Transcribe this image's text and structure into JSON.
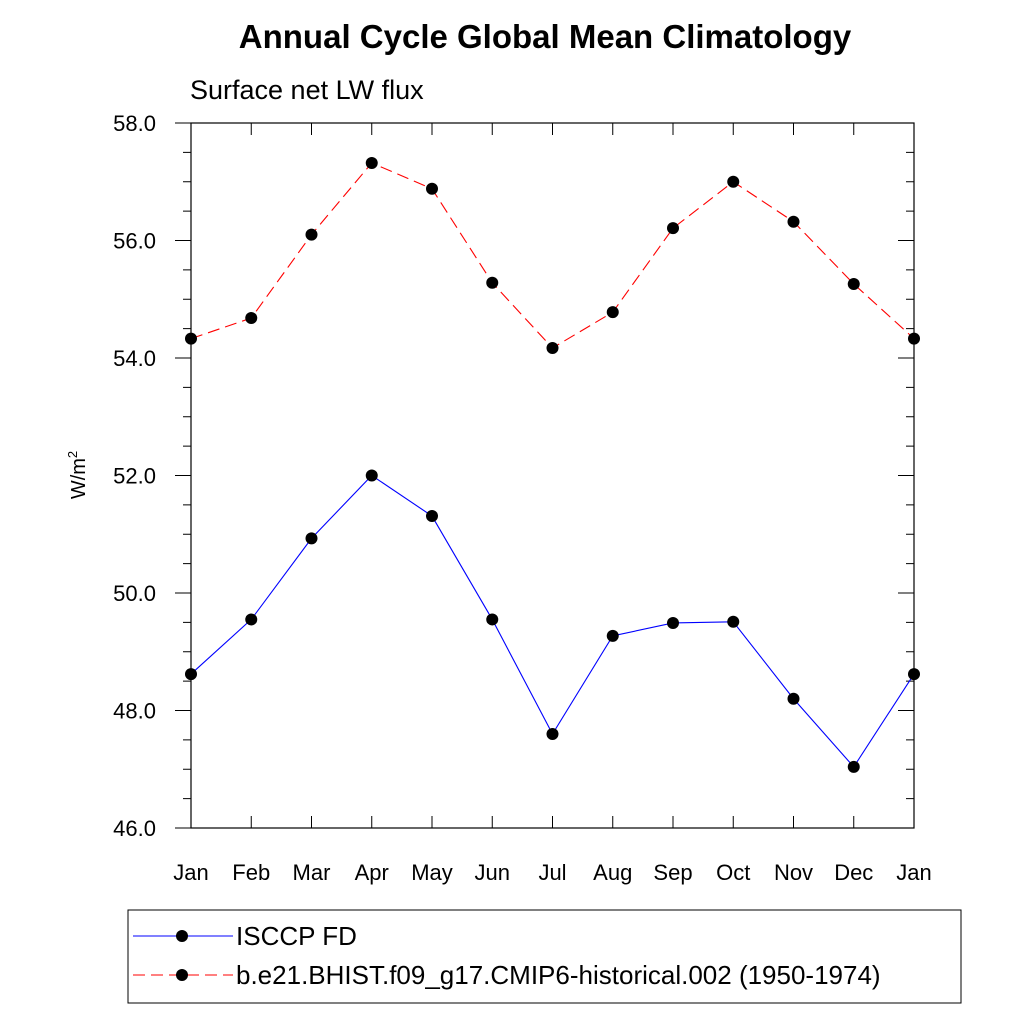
{
  "chart_data": {
    "type": "line",
    "title": "Annual Cycle Global Mean Climatology",
    "subtitle": "Surface net LW flux",
    "xlabel": "",
    "ylabel": "W/m",
    "ylabel_sup": "2",
    "categories": [
      "Jan",
      "Feb",
      "Mar",
      "Apr",
      "May",
      "Jun",
      "Jul",
      "Aug",
      "Sep",
      "Oct",
      "Nov",
      "Dec",
      "Jan"
    ],
    "ylim": [
      46.0,
      58.0
    ],
    "yticks": [
      "46.0",
      "48.0",
      "50.0",
      "52.0",
      "54.0",
      "56.0",
      "58.0"
    ],
    "ytick_values": [
      46,
      48,
      50,
      52,
      54,
      56,
      58
    ],
    "grid": false,
    "legend_position": "bottom",
    "series": [
      {
        "name": "ISCCP FD",
        "color": "#0000ff",
        "dashed": false,
        "values": [
          48.62,
          49.55,
          50.93,
          52.0,
          51.31,
          49.55,
          47.6,
          49.27,
          49.49,
          49.51,
          48.2,
          47.04,
          48.62
        ]
      },
      {
        "name": "b.e21.BHIST.f09_g17.CMIP6-historical.002 (1950-1974)",
        "color": "#ff0000",
        "dashed": true,
        "values": [
          54.33,
          54.68,
          56.1,
          57.32,
          56.88,
          55.28,
          54.17,
          54.78,
          56.21,
          57.0,
          56.32,
          55.26,
          54.33
        ]
      }
    ]
  }
}
